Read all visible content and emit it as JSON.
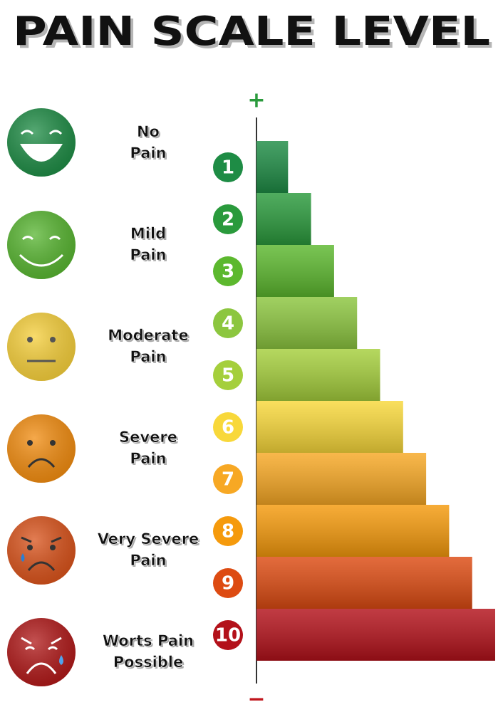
{
  "title": "PAIN SCALE LEVEL",
  "axis": {
    "top": "+",
    "bottom": "−",
    "top_color": "#2a9a3c",
    "bottom_color": "#c0161c"
  },
  "faces": [
    {
      "lines": [
        "No",
        "Pain"
      ],
      "color": "#1e8c45"
    },
    {
      "lines": [
        "Mild",
        "Pain"
      ],
      "color": "#57b530"
    },
    {
      "lines": [
        "Moderate",
        "Pain"
      ],
      "color": "#f6cf3a"
    },
    {
      "lines": [
        "Severe",
        "Pain"
      ],
      "color": "#f28c0f"
    },
    {
      "lines": [
        "Very Severe",
        "Pain"
      ],
      "color": "#d9521a"
    },
    {
      "lines": [
        "Worts Pain",
        "Possible"
      ],
      "color": "#b01818"
    }
  ],
  "levels": [
    1,
    2,
    3,
    4,
    5,
    6,
    7,
    8,
    9,
    10
  ],
  "level_colors": [
    "#1e8c45",
    "#2a9a3c",
    "#5cb82e",
    "#8cc63f",
    "#a5cf3c",
    "#f8d83a",
    "#f7a824",
    "#f59a0c",
    "#dd4b12",
    "#b3111a"
  ]
}
